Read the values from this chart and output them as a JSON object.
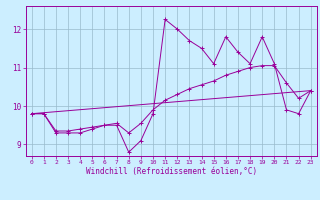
{
  "xlabel": "Windchill (Refroidissement éolien,°C)",
  "bg_color": "#cceeff",
  "line_color": "#990099",
  "grid_color": "#99bbcc",
  "xlim": [
    -0.5,
    23.5
  ],
  "ylim": [
    8.7,
    12.6
  ],
  "xticks": [
    0,
    1,
    2,
    3,
    4,
    5,
    6,
    7,
    8,
    9,
    10,
    11,
    12,
    13,
    14,
    15,
    16,
    17,
    18,
    19,
    20,
    21,
    22,
    23
  ],
  "yticks": [
    9,
    10,
    11,
    12
  ],
  "hours": [
    0,
    1,
    2,
    3,
    4,
    5,
    6,
    7,
    8,
    9,
    10,
    11,
    12,
    13,
    14,
    15,
    16,
    17,
    18,
    19,
    20,
    21,
    22,
    23
  ],
  "line_main": [
    9.8,
    9.8,
    9.3,
    9.3,
    9.3,
    9.4,
    9.5,
    9.5,
    8.8,
    9.1,
    9.8,
    12.25,
    12.0,
    11.7,
    11.5,
    11.1,
    11.8,
    11.4,
    11.1,
    11.8,
    11.1,
    9.9,
    9.8,
    10.4
  ],
  "line_trend1_x": [
    0,
    23
  ],
  "line_trend1_y": [
    9.8,
    10.4
  ],
  "line_trend2": [
    9.8,
    9.8,
    9.35,
    9.35,
    9.4,
    9.45,
    9.5,
    9.55,
    9.3,
    9.55,
    9.9,
    10.15,
    10.3,
    10.45,
    10.55,
    10.65,
    10.8,
    10.9,
    11.0,
    11.05,
    11.05,
    10.6,
    10.2,
    10.4
  ]
}
